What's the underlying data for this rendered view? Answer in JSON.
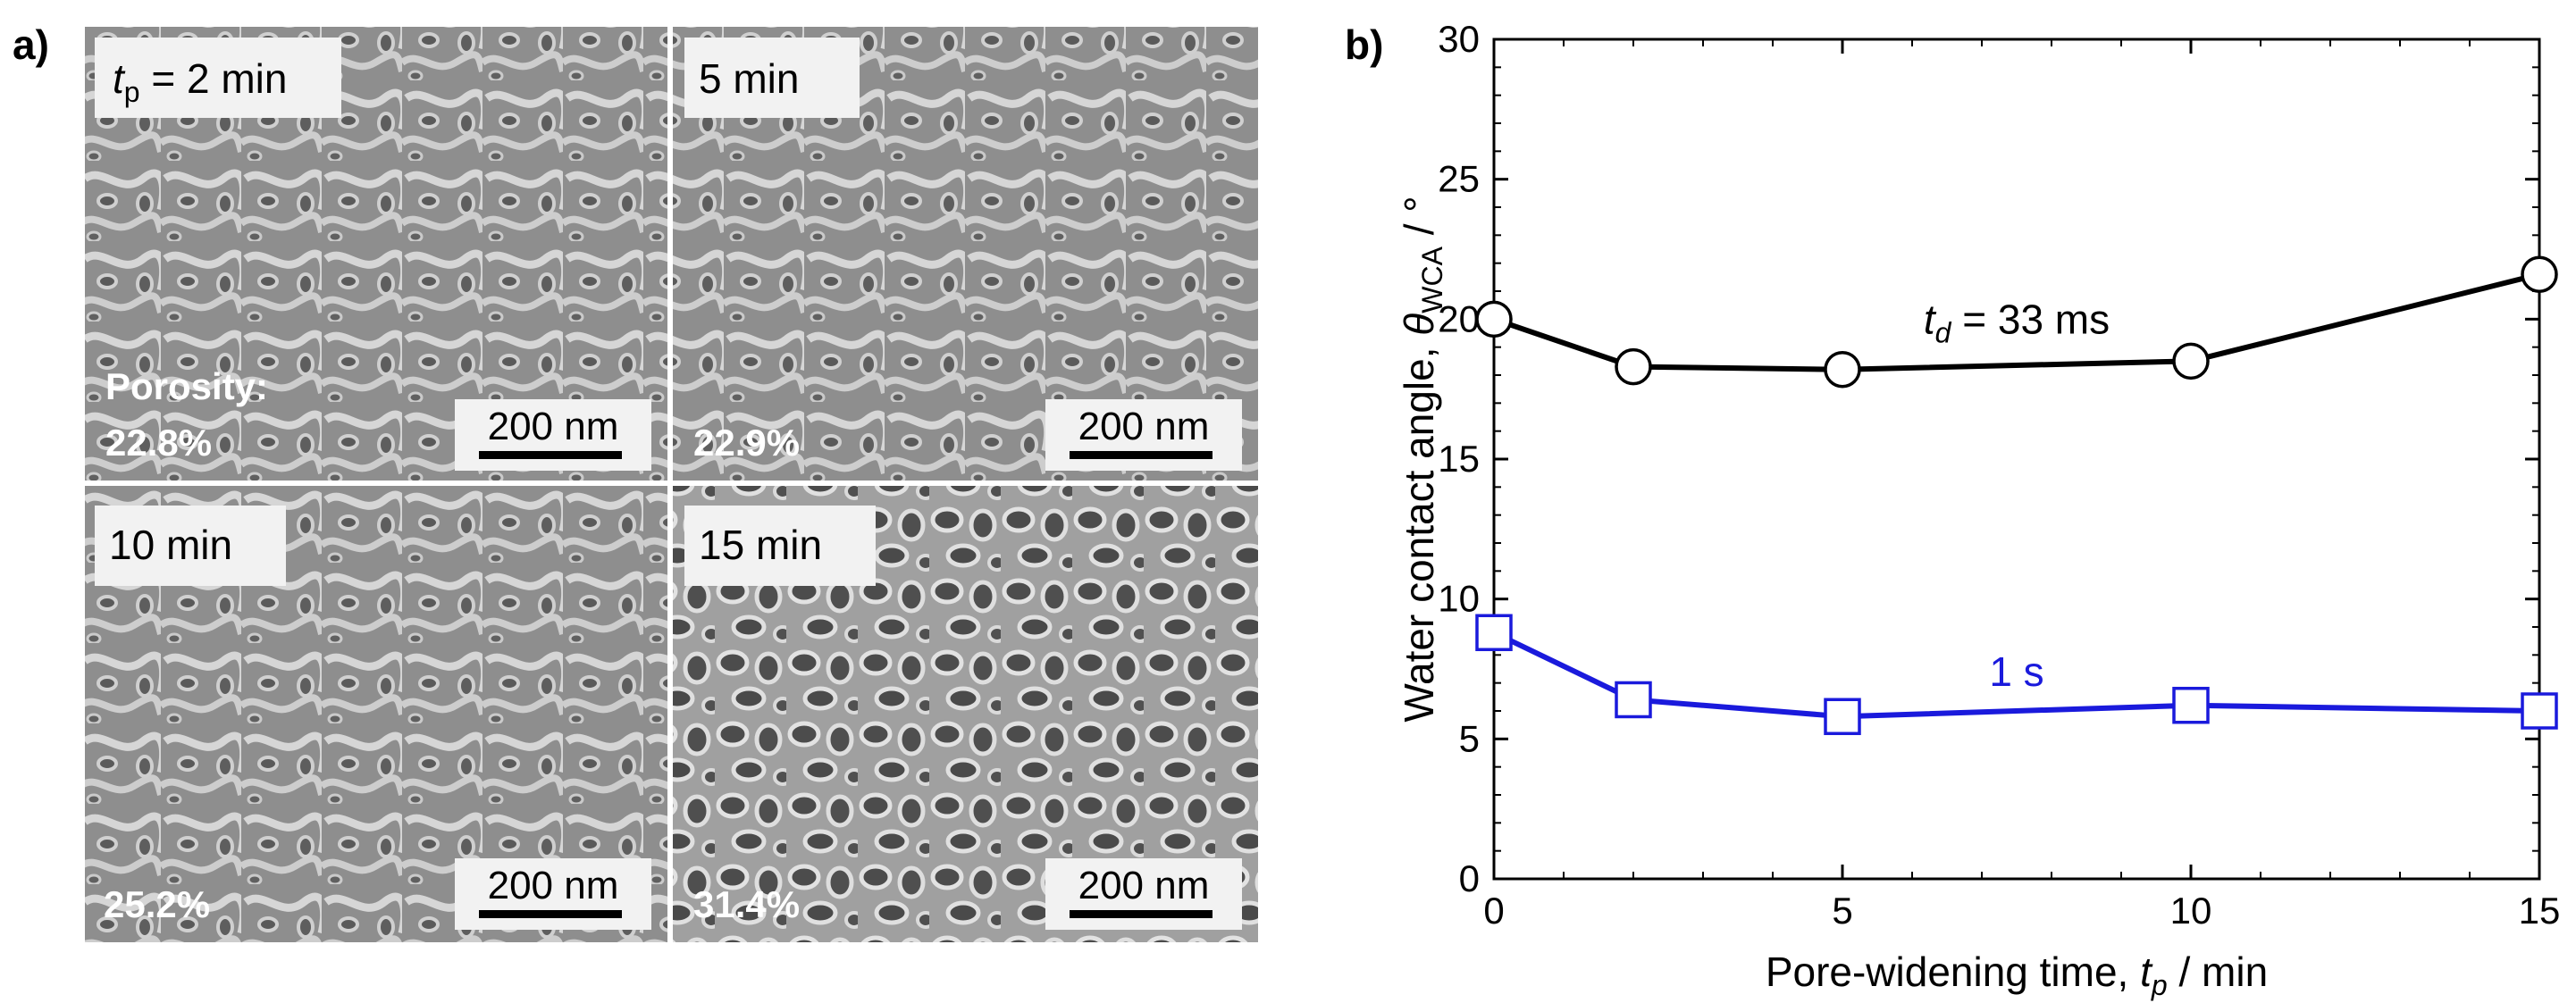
{
  "panel_a": {
    "letter": "a)",
    "porosity_title": "Porosity:",
    "tiles": [
      {
        "time_prefix": "t",
        "time_sub": "p",
        "time_suffix": " = 2 min",
        "porosity": "22.8%",
        "scale_bar": "200 nm"
      },
      {
        "time_label": "5 min",
        "porosity": "22.9%",
        "scale_bar": "200 nm"
      },
      {
        "time_label": "10 min",
        "porosity": "25.2%",
        "scale_bar": "200 nm"
      },
      {
        "time_label": "15 min",
        "porosity": "31.4%",
        "scale_bar": "200 nm"
      }
    ]
  },
  "panel_b": {
    "letter": "b)",
    "ylabel_text": "Water contact angle, ",
    "ylabel_symbol": "θ",
    "ylabel_sub": "WCA",
    "ylabel_unit": " / °",
    "xlabel_text": "Pore-widening time, ",
    "xlabel_symbol": "t",
    "xlabel_sub": "p",
    "xlabel_unit": " / min"
  },
  "chart_data": {
    "type": "line",
    "title": "",
    "xlabel": "Pore-widening time, tp / min",
    "ylabel": "Water contact angle, θWCA / °",
    "xlim": [
      0,
      15
    ],
    "ylim": [
      0,
      30
    ],
    "xticks": [
      0,
      5,
      10,
      15
    ],
    "yticks": [
      0,
      5,
      10,
      15,
      20,
      25,
      30
    ],
    "grid": false,
    "series": [
      {
        "name": "td = 33 ms",
        "label_prefix": "t",
        "label_sub": "d",
        "label_suffix": " = 33 ms",
        "color": "#000000",
        "marker": "circle",
        "x": [
          0,
          2,
          5,
          10,
          15
        ],
        "y": [
          20.0,
          18.3,
          18.2,
          18.5,
          21.6
        ]
      },
      {
        "name": "1 s",
        "label_text": "1 s",
        "color": "#1a1adc",
        "marker": "square",
        "x": [
          0,
          2,
          5,
          10,
          15
        ],
        "y": [
          8.8,
          6.4,
          5.8,
          6.2,
          6.0
        ]
      }
    ]
  }
}
